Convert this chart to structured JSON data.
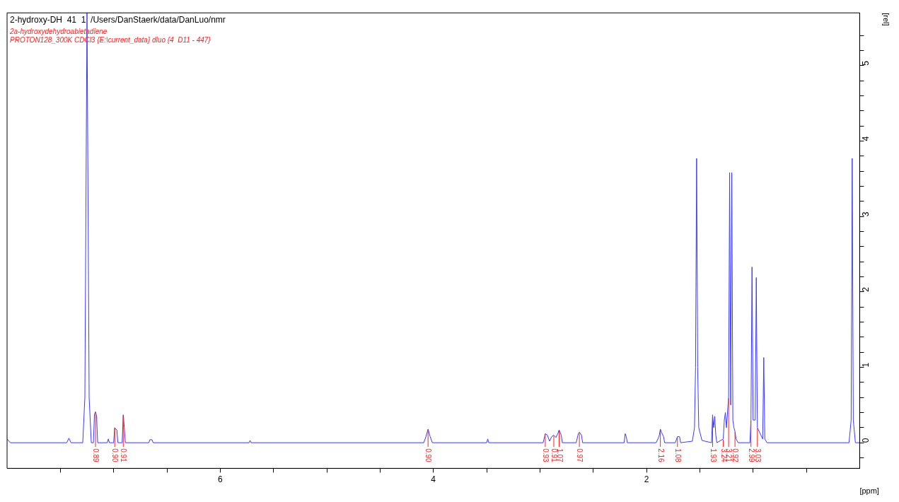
{
  "chart_data": {
    "type": "line",
    "title": "2-hydroxy-DH  41  1  /Users/DanStaerk/data/DanLuo/nmr",
    "subtitle": "2a-hydroxydehydroabietadiene",
    "xlabel": "[ppm]",
    "ylabel": "[rel]",
    "annotations": [
      "PROTON128_300K CDCl3 {E:\\current_data} dluo {4  D11 - 447}",
      {
        "text": "0.89",
        "x": 7.17,
        "y": 0.41
      },
      {
        "text": "0.90",
        "x": 6.99,
        "y": 0.2
      },
      {
        "text": "0.91",
        "x": 6.91,
        "y": 0.37
      },
      {
        "text": "0.90",
        "x": 4.05,
        "y": 0.18
      },
      {
        "text": "0.93",
        "x": 2.95,
        "y": 0.12
      },
      {
        "text": "0.91",
        "x": 2.87,
        "y": 0.1
      },
      {
        "text": "1.07",
        "x": 2.82,
        "y": 0.17
      },
      {
        "text": "0.97",
        "x": 2.63,
        "y": 0.14
      },
      {
        "text": "2.16",
        "x": 1.87,
        "y": 0.18
      },
      {
        "text": "1.08",
        "x": 1.71,
        "y": 0.08
      },
      {
        "text": "1.93",
        "x": 1.38,
        "y": 0.37
      },
      {
        "text": "3.24",
        "x": 1.28,
        "y": 0.05
      },
      {
        "text": "3.21",
        "x": 1.23,
        "y": 0.6
      },
      {
        "text": "0.92",
        "x": 1.17,
        "y": 0.15
      },
      {
        "text": "2.99",
        "x": 1.02,
        "y": 0.3
      },
      {
        "text": "3.03",
        "x": 0.96,
        "y": 0.2
      }
    ],
    "series": [
      {
        "color": "#3a3aff",
        "x": [
          8.0,
          7.97,
          7.44,
          7.42,
          7.4,
          7.29,
          7.27,
          7.25,
          7.23,
          7.21,
          7.19,
          7.18,
          7.17,
          7.16,
          7.15,
          7.06,
          7.05,
          7.04,
          7.0,
          6.99,
          6.98,
          6.97,
          6.96,
          6.92,
          6.91,
          6.9,
          6.89,
          6.67,
          6.66,
          6.64,
          6.63,
          5.73,
          5.72,
          5.71,
          4.09,
          4.07,
          4.05,
          4.03,
          4.01,
          3.5,
          3.49,
          3.48,
          2.97,
          2.95,
          2.93,
          2.91,
          2.89,
          2.87,
          2.85,
          2.83,
          2.82,
          2.8,
          2.79,
          2.66,
          2.64,
          2.63,
          2.61,
          2.6,
          2.21,
          2.2,
          2.19,
          2.18,
          1.91,
          1.89,
          1.88,
          1.87,
          1.86,
          1.84,
          1.83,
          1.73,
          1.71,
          1.69,
          1.68,
          1.57,
          1.55,
          1.54,
          1.53,
          1.52,
          1.51,
          1.48,
          1.39,
          1.38,
          1.37,
          1.36,
          1.35,
          1.34,
          1.28,
          1.27,
          1.26,
          1.25,
          1.23,
          1.22,
          1.21,
          1.2,
          1.19,
          1.18,
          1.17,
          1.16,
          1.14,
          1.03,
          1.02,
          1.01,
          1.0,
          0.98,
          0.97,
          0.96,
          0.91,
          0.9,
          0.89,
          0.87,
          0.1,
          0.08,
          0.07,
          0.06,
          0.04,
          0.0
        ],
        "values": [
          0.05,
          0,
          0,
          0.06,
          0,
          0,
          0.6,
          5.7,
          0.6,
          0,
          0,
          0.38,
          0.41,
          0.35,
          0,
          0,
          0.05,
          0,
          0,
          0.2,
          0.18,
          0.17,
          0,
          0,
          0.37,
          0.2,
          0,
          0,
          0.04,
          0.04,
          0,
          0,
          0.03,
          0,
          0,
          0.08,
          0.18,
          0.08,
          0,
          0,
          0.05,
          0,
          0,
          0.12,
          0.1,
          0.02,
          0.08,
          0.1,
          0.07,
          0.13,
          0.17,
          0.1,
          0,
          0,
          0.12,
          0.14,
          0.1,
          0,
          0,
          0.12,
          0.08,
          0,
          0,
          0.06,
          0.1,
          0.18,
          0.14,
          0.08,
          0,
          0,
          0.08,
          0.08,
          0,
          0.02,
          0.2,
          1.0,
          3.77,
          1.0,
          0.2,
          0.03,
          0,
          0.37,
          0.2,
          0.35,
          0.1,
          0,
          0.05,
          0.3,
          0.4,
          0.2,
          0.6,
          3.58,
          0.5,
          3.58,
          0.3,
          0.2,
          0.15,
          0.05,
          0,
          0,
          0.3,
          2.33,
          0.3,
          0.3,
          2.19,
          0.2,
          0.05,
          1.13,
          0.05,
          0,
          0,
          0.3,
          3.77,
          0.3,
          0,
          0
        ]
      }
    ],
    "xlim": [
      8.0,
      0.0
    ],
    "xticks": [
      {
        "value": 7.5,
        "label": null
      },
      {
        "value": 7,
        "label": null
      },
      {
        "value": 6.5,
        "label": null
      },
      6,
      {
        "value": 5.5,
        "label": null
      },
      {
        "value": 5,
        "label": null
      },
      {
        "value": 4.5,
        "label": null
      },
      4,
      {
        "value": 3.5,
        "label": null
      },
      {
        "value": 3,
        "label": null
      },
      {
        "value": 2.5,
        "label": null
      },
      2,
      {
        "value": 1.5,
        "label": null
      },
      {
        "value": 1,
        "label": null
      },
      {
        "value": 0.5,
        "label": null
      }
    ],
    "ylim": [
      -0.34,
      5.7
    ],
    "yticks": [
      {
        "value": -0.2,
        "label": null
      },
      0,
      {
        "value": 0.2,
        "label": null
      },
      {
        "value": 0.4,
        "label": null
      },
      {
        "value": 0.6,
        "label": null
      },
      {
        "value": 0.8,
        "label": null
      },
      1,
      {
        "value": 1.2,
        "label": null
      },
      {
        "value": 1.4,
        "label": null
      },
      {
        "value": 1.6,
        "label": null
      },
      {
        "value": 1.8,
        "label": null
      },
      2,
      {
        "value": 2.2,
        "label": null
      },
      {
        "value": 2.4,
        "label": null
      },
      {
        "value": 2.6,
        "label": null
      },
      {
        "value": 2.8,
        "label": null
      },
      3,
      {
        "value": 3.2,
        "label": null
      },
      {
        "value": 3.4,
        "label": null
      },
      {
        "value": 3.6,
        "label": null
      },
      {
        "value": 3.8,
        "label": null
      },
      4,
      {
        "value": 4.2,
        "label": null
      },
      {
        "value": 4.4,
        "label": null
      },
      {
        "value": 4.6,
        "label": null
      },
      {
        "value": 4.8,
        "label": null
      },
      5,
      {
        "value": 5.2,
        "label": null
      },
      {
        "value": 5.4,
        "label": null
      }
    ],
    "grid": false,
    "legend": false,
    "marker": "none",
    "line_style": "solid"
  }
}
